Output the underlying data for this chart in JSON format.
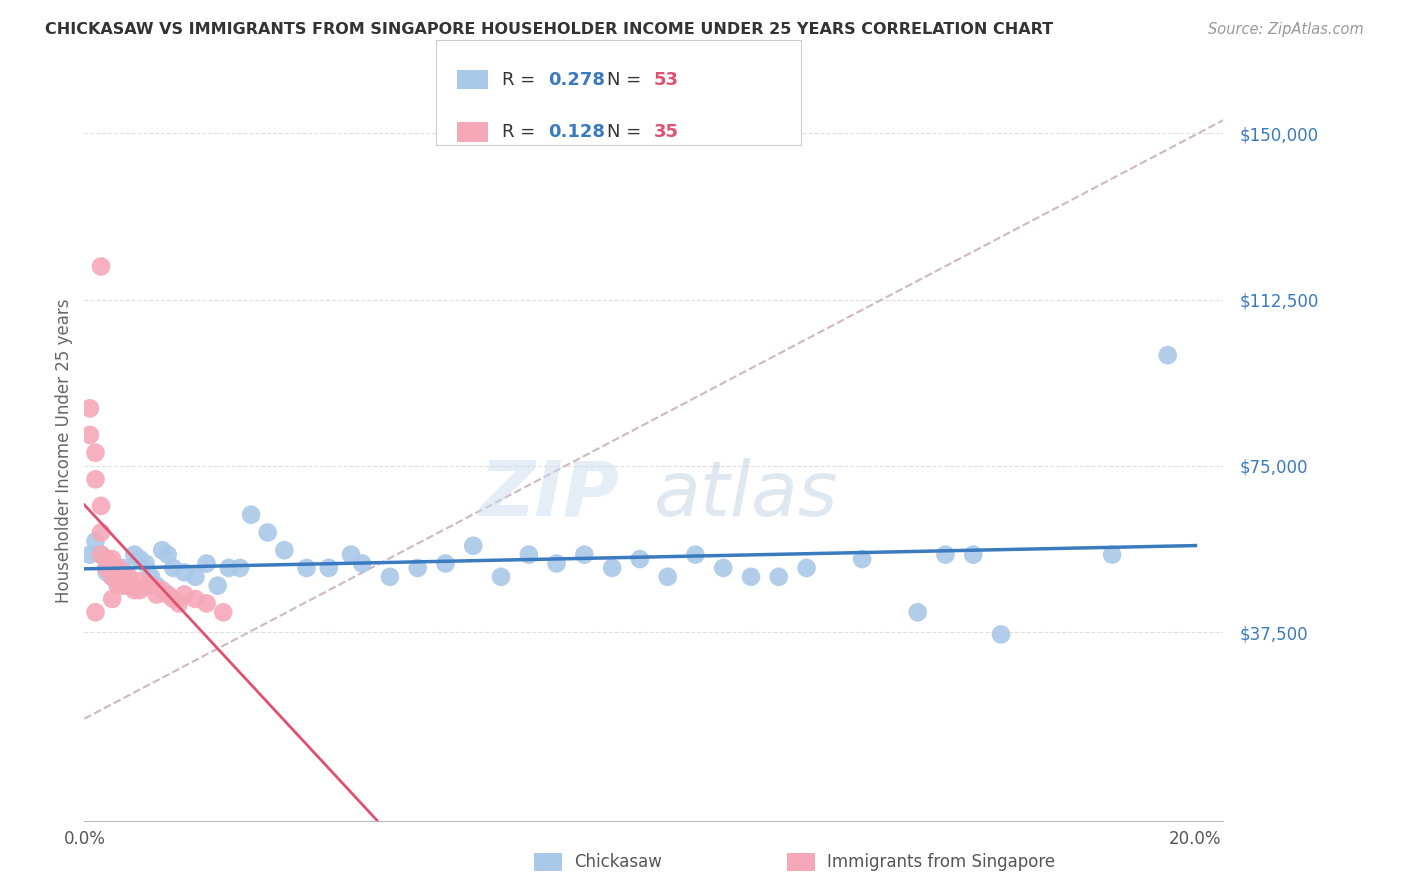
{
  "title": "CHICKASAW VS IMMIGRANTS FROM SINGAPORE HOUSEHOLDER INCOME UNDER 25 YEARS CORRELATION CHART",
  "source": "Source: ZipAtlas.com",
  "ylabel": "Householder Income Under 25 years",
  "yticks": [
    0,
    37500,
    75000,
    112500,
    150000
  ],
  "ytick_labels": [
    "",
    "$37,500",
    "$75,000",
    "$112,500",
    "$150,000"
  ],
  "ylim": [
    -5000,
    162000
  ],
  "xlim": [
    0.0,
    0.205
  ],
  "r_blue": 0.278,
  "n_blue": 53,
  "r_pink": 0.128,
  "n_pink": 35,
  "blue_color": "#aac8e8",
  "pink_color": "#f5a8b8",
  "trendline_blue": "#3a7abf",
  "trendline_pink": "#e05070",
  "trendline_dashed_color": "#d0b8c0",
  "watermark_zip": "ZIP",
  "watermark_atlas": "atlas",
  "blue_x": [
    0.001,
    0.002,
    0.003,
    0.004,
    0.004,
    0.005,
    0.006,
    0.007,
    0.008,
    0.009,
    0.01,
    0.011,
    0.012,
    0.013,
    0.014,
    0.015,
    0.016,
    0.018,
    0.02,
    0.022,
    0.024,
    0.026,
    0.028,
    0.03,
    0.033,
    0.036,
    0.04,
    0.044,
    0.048,
    0.05,
    0.055,
    0.06,
    0.065,
    0.07,
    0.075,
    0.08,
    0.085,
    0.09,
    0.095,
    0.1,
    0.105,
    0.11,
    0.115,
    0.12,
    0.125,
    0.13,
    0.14,
    0.15,
    0.155,
    0.16,
    0.165,
    0.185,
    0.195
  ],
  "blue_y": [
    55000,
    58000,
    55000,
    51000,
    52000,
    50000,
    49000,
    52000,
    48000,
    55000,
    54000,
    53000,
    50000,
    48000,
    56000,
    55000,
    52000,
    51000,
    50000,
    53000,
    48000,
    52000,
    52000,
    64000,
    60000,
    56000,
    52000,
    52000,
    55000,
    53000,
    50000,
    52000,
    53000,
    57000,
    50000,
    55000,
    53000,
    55000,
    52000,
    54000,
    50000,
    55000,
    52000,
    50000,
    50000,
    52000,
    54000,
    42000,
    55000,
    55000,
    37000,
    55000,
    100000
  ],
  "pink_x": [
    0.001,
    0.001,
    0.002,
    0.002,
    0.003,
    0.003,
    0.003,
    0.004,
    0.004,
    0.005,
    0.005,
    0.005,
    0.006,
    0.006,
    0.007,
    0.007,
    0.008,
    0.008,
    0.009,
    0.01,
    0.01,
    0.011,
    0.012,
    0.013,
    0.014,
    0.015,
    0.016,
    0.017,
    0.018,
    0.02,
    0.022,
    0.025,
    0.003,
    0.002,
    0.005
  ],
  "pink_y": [
    88000,
    82000,
    78000,
    72000,
    66000,
    60000,
    55000,
    54000,
    52000,
    54000,
    51000,
    50000,
    52000,
    48000,
    51000,
    48000,
    50000,
    48000,
    47000,
    49000,
    47000,
    48000,
    48000,
    46000,
    47000,
    46000,
    45000,
    44000,
    46000,
    45000,
    44000,
    42000,
    120000,
    42000,
    45000
  ],
  "xtick_positions": [
    0.0,
    0.05,
    0.1,
    0.15,
    0.2
  ],
  "xtick_labels": [
    "0.0%",
    "",
    "",
    "",
    "20.0%"
  ]
}
